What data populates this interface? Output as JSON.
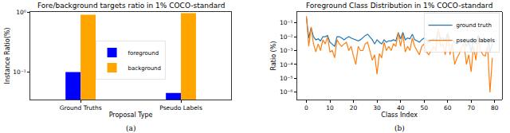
{
  "chart_data": [
    {
      "type": "bar",
      "title": "Fore/background targets ratio in 1% COCO-standard",
      "x_label": "Proposal Type",
      "y_label": "Instance Ratio(%)",
      "annotation": "(a)",
      "categories": [
        "Ground Truths",
        "Pseudo Labels"
      ],
      "series": [
        {
          "name": "foreground",
          "color": "#0000ff",
          "values": [
            0.1,
            0.045
          ]
        },
        {
          "name": "background",
          "color": "#ffa500",
          "values": [
            0.9,
            0.955
          ]
        }
      ],
      "log": "y",
      "ylim": [
        0.035,
        1.0
      ],
      "yticks": [
        {
          "value": 0.1,
          "label": "10⁻¹"
        },
        {
          "value": 1,
          "label": "10⁰"
        }
      ],
      "legend": "center",
      "grid": false
    },
    {
      "type": "line",
      "title": "Foreground Class Distribution in 1% COCO-standard",
      "x_label": "Class Index",
      "y_label": "Ratio (%)",
      "annotation": "(b)",
      "x": [
        0,
        1,
        2,
        3,
        4,
        5,
        6,
        7,
        8,
        9,
        10,
        11,
        12,
        13,
        14,
        15,
        16,
        17,
        18,
        19,
        20,
        21,
        22,
        23,
        24,
        25,
        26,
        27,
        28,
        29,
        30,
        31,
        32,
        33,
        34,
        35,
        36,
        37,
        38,
        39,
        40,
        41,
        42,
        43,
        44,
        45,
        46,
        47,
        48,
        49,
        50,
        51,
        52,
        53,
        54,
        55,
        56,
        57,
        58,
        59,
        60,
        61,
        62,
        63,
        64,
        65,
        66,
        67,
        68,
        69,
        70,
        71,
        72,
        73,
        74,
        75,
        76,
        77,
        78,
        79
      ],
      "series": [
        {
          "name": "ground truth",
          "color": "#1f77b4",
          "values": [
            0.25,
            0.008,
            0.045,
            0.01,
            0.006,
            0.007,
            0.005,
            0.01,
            0.01,
            0.012,
            0.004,
            0.003,
            0.002,
            0.01,
            0.01,
            0.008,
            0.006,
            0.008,
            0.01,
            0.008,
            0.007,
            0.006,
            0.005,
            0.006,
            0.009,
            0.012,
            0.015,
            0.01,
            0.006,
            0.003,
            0.006,
            0.004,
            0.003,
            0.006,
            0.004,
            0.005,
            0.005,
            0.006,
            0.005,
            0.02,
            0.007,
            0.02,
            0.006,
            0.008,
            0.007,
            0.015,
            0.006,
            0.005,
            0.004,
            0.006,
            0.008,
            0.006,
            0.004,
            0.005,
            0.007,
            0.005,
            0.03,
            0.007,
            0.008,
            0.005,
            0.018,
            0.005,
            0.006,
            0.004,
            0.003,
            0.004,
            0.005,
            0.006,
            0.002,
            0.004,
            0.0008,
            0.006,
            0.003,
            0.012,
            0.006,
            0.006,
            0.004,
            0.008,
            0.0008,
            0.003
          ]
        },
        {
          "name": "pseudo labels",
          "color": "#ff7f0e",
          "values": [
            0.3,
            0.002,
            0.05,
            0.003,
            0.0008,
            0.003,
            0.001,
            0.006,
            0.003,
            0.01,
            0.0008,
            0.001,
            0.0003,
            0.006,
            0.003,
            0.002,
            0.003,
            0.004,
            0.001,
            0.002,
            0.0004,
            0.0001,
            0.002,
            0.001,
            0.001,
            0.003,
            0.004,
            0.001,
            0.0002,
            0.0005,
            2e-05,
            0.0006,
            0.0003,
            0.004,
            0.001,
            0.002,
            0.001,
            0.003,
            0.002,
            0.02,
            0.002,
            0.015,
            0.0008,
            0.002,
            0.001,
            0.008,
            0.002,
            0.001,
            0.0005,
            0.002,
            0.003,
            0.0008,
            0.0005,
            0.001,
            0.002,
            0.001,
            0.04,
            0.002,
            0.003,
            0.0005,
            0.015,
            0.0005,
            0.003,
            0.0001,
            0.0003,
            0.0006,
            0.002,
            0.003,
            0.0001,
            0.0005,
            3e-05,
            0.002,
            0.0002,
            0.006,
            0.001,
            0.0005,
            0.0004,
            0.002,
            1e-06,
            0.0003
          ]
        }
      ],
      "log": "y",
      "xlim": [
        -4,
        83
      ],
      "xticks": [
        0,
        10,
        20,
        30,
        40,
        50,
        60,
        70,
        80
      ],
      "ylim": [
        3e-07,
        0.6
      ],
      "yticks": [
        {
          "value": 1e-06,
          "label": "10⁻⁶"
        },
        {
          "value": 1e-05,
          "label": "10⁻⁵"
        },
        {
          "value": 0.0001,
          "label": "10⁻⁴"
        },
        {
          "value": 0.001,
          "label": "10⁻³"
        },
        {
          "value": 0.01,
          "label": "10⁻²"
        },
        {
          "value": 0.1,
          "label": "10⁻¹"
        }
      ],
      "legend": "upper right",
      "grid": false
    }
  ]
}
